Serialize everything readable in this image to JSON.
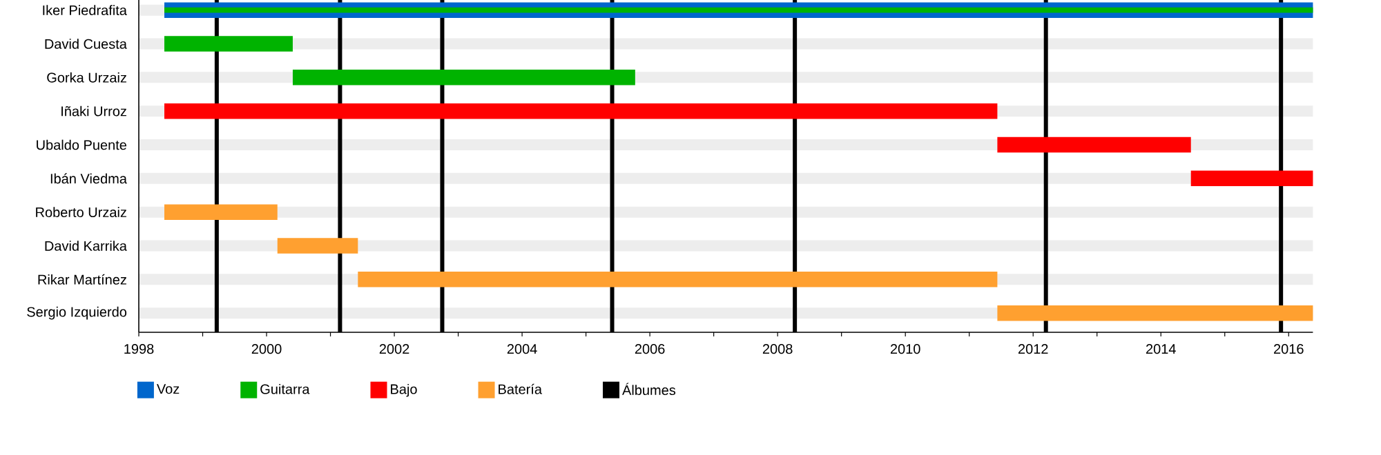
{
  "chart_data": {
    "type": "bar",
    "orientation": "horizontal",
    "categories": [
      "Iker Piedrafita",
      "David Cuesta",
      "Gorka Urzaiz",
      "Iñaki Urroz",
      "Ubaldo Puente",
      "Ibán Viedma",
      "Roberto Urzaiz",
      "David Karrika",
      "Rikar Martínez",
      "Sergio Izquierdo"
    ],
    "series": [
      {
        "name": "Voz",
        "color": "#0066cc",
        "base": [
          1998.4,
          null,
          null,
          null,
          null,
          null,
          null,
          null,
          null,
          null
        ],
        "values": [
          17.98,
          null,
          null,
          null,
          null,
          null,
          null,
          null,
          null,
          null
        ]
      },
      {
        "name": "Guitarra",
        "color": "#00b300",
        "base": [
          1998.4,
          1998.4,
          2000.41,
          null,
          null,
          null,
          null,
          null,
          null,
          null
        ],
        "values": [
          17.98,
          2.01,
          5.36,
          null,
          null,
          null,
          null,
          null,
          null,
          null
        ]
      },
      {
        "name": "Bajo",
        "color": "#ff0000",
        "base": [
          null,
          null,
          null,
          1998.4,
          2011.44,
          2014.47,
          null,
          null,
          null,
          null
        ],
        "values": [
          null,
          null,
          null,
          13.04,
          3.03,
          1.91,
          null,
          null,
          null,
          null
        ]
      },
      {
        "name": "Batería",
        "color": "#ffa030",
        "base": [
          null,
          null,
          null,
          null,
          null,
          null,
          1998.4,
          2000.17,
          2001.43,
          2011.44
        ],
        "values": [
          null,
          null,
          null,
          null,
          null,
          null,
          1.77,
          1.26,
          10.01,
          4.94
        ]
      }
    ],
    "ref_lines": [
      {
        "axis": "x",
        "value": 1999.22,
        "color": "#000000",
        "label": "Álbumes"
      },
      {
        "axis": "x",
        "value": 2001.15,
        "color": "#000000"
      },
      {
        "axis": "x",
        "value": 2002.75,
        "color": "#000000"
      },
      {
        "axis": "x",
        "value": 2005.41,
        "color": "#000000"
      },
      {
        "axis": "x",
        "value": 2008.27,
        "color": "#000000"
      },
      {
        "axis": "x",
        "value": 2012.2,
        "color": "#000000"
      },
      {
        "axis": "x",
        "value": 2015.88,
        "color": "#000000"
      }
    ],
    "xlim": [
      1998,
      2016.38
    ],
    "xticks": [
      1998,
      {
        "value": 1999,
        "label": null
      },
      2000,
      {
        "value": 2001,
        "label": null
      },
      2002,
      {
        "value": 2003,
        "label": null
      },
      2004,
      {
        "value": 2005,
        "label": null
      },
      2006,
      {
        "value": 2007,
        "label": null
      },
      2008,
      {
        "value": 2009,
        "label": null
      },
      2010,
      {
        "value": 2011,
        "label": null
      },
      2012,
      {
        "value": 2013,
        "label": null
      },
      2014,
      {
        "value": 2015,
        "label": null
      },
      2016
    ],
    "grid": "y",
    "legend": "bottom"
  }
}
